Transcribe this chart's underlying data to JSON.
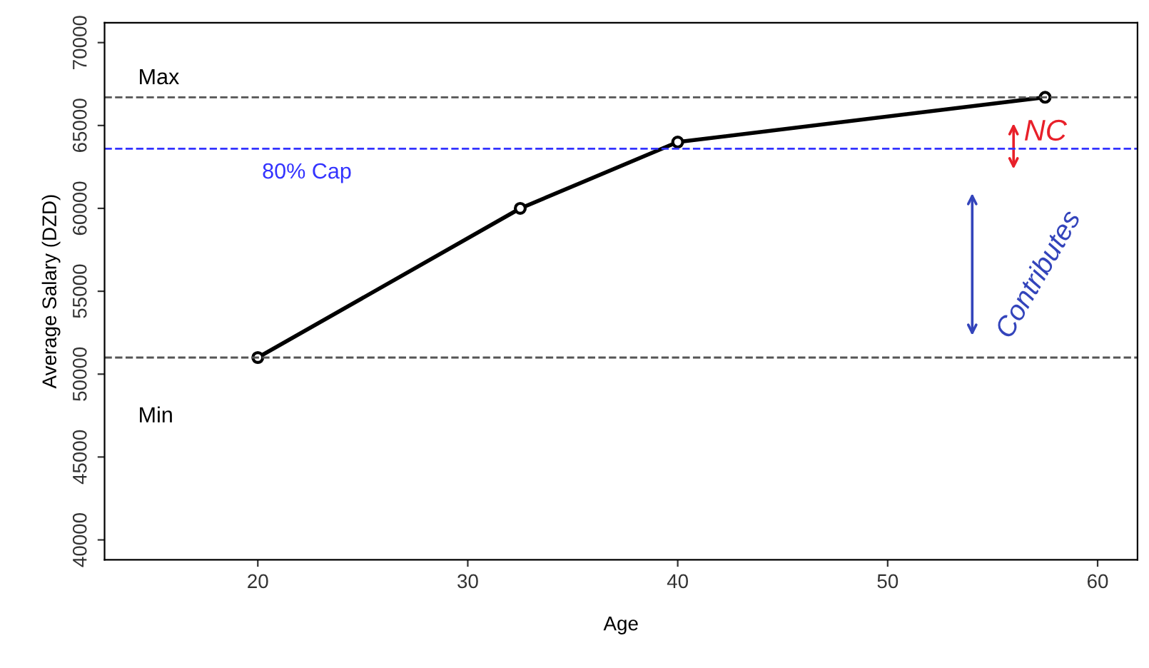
{
  "chart_data": {
    "type": "line",
    "xlabel": "Age",
    "ylabel": "Average Salary (DZD)",
    "x": [
      20,
      32.5,
      40,
      57.5
    ],
    "series": [
      {
        "color": "#000000",
        "values": [
          51000,
          60000,
          64000,
          66700
        ]
      }
    ],
    "marker": "circle",
    "line_style": "solid",
    "grid": false,
    "legend": false,
    "xlim": [
      12.7,
      61.9
    ],
    "xticks": [
      20,
      30,
      40,
      50,
      60
    ],
    "ylim": [
      38800,
      71200
    ],
    "yticks": [
      40000,
      45000,
      50000,
      55000,
      60000,
      65000,
      70000
    ],
    "ref_lines": [
      {
        "axis": "y",
        "value": 66700,
        "label": "Max",
        "color": "#555555",
        "line_style": "dashed"
      },
      {
        "axis": "y",
        "value": 51000,
        "label": "Min",
        "color": "#555555",
        "line_style": "dashed"
      },
      {
        "axis": "y",
        "value": 63600,
        "label": "80% Cap",
        "color": "#3333ff",
        "line_style": "dashed"
      }
    ],
    "annotations": [
      "NC",
      "Contributes"
    ]
  }
}
